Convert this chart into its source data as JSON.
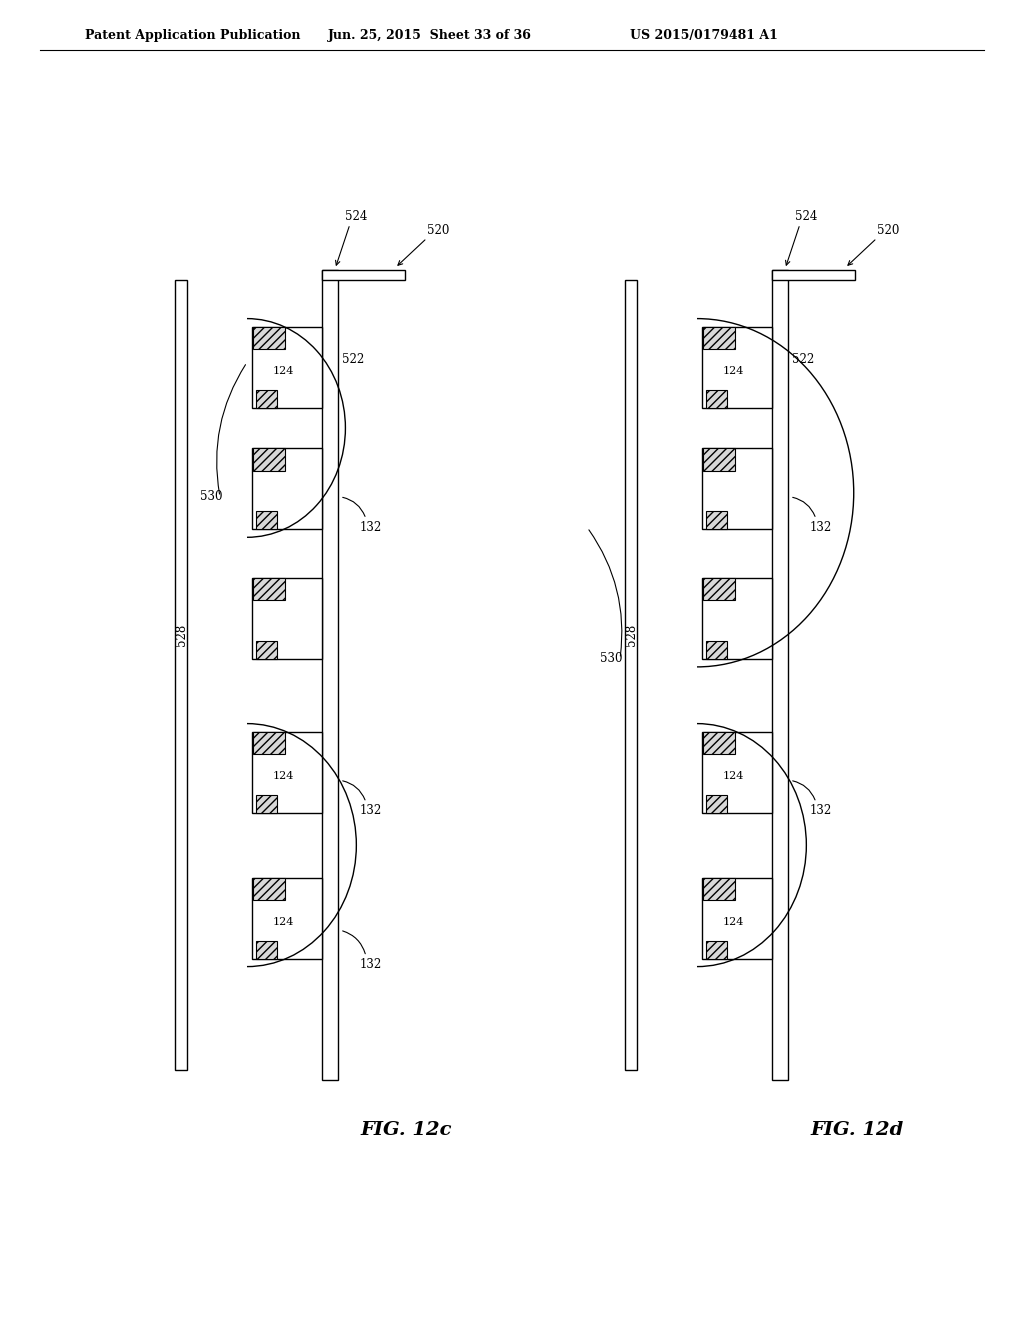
{
  "header_left": "Patent Application Publication",
  "header_mid": "Jun. 25, 2015  Sheet 33 of 36",
  "header_right": "US 2015/0179481 A1",
  "fig_left_label": "FIG. 12c",
  "fig_right_label": "FIG. 12d",
  "bg_color": "#ffffff",
  "line_color": "#000000"
}
